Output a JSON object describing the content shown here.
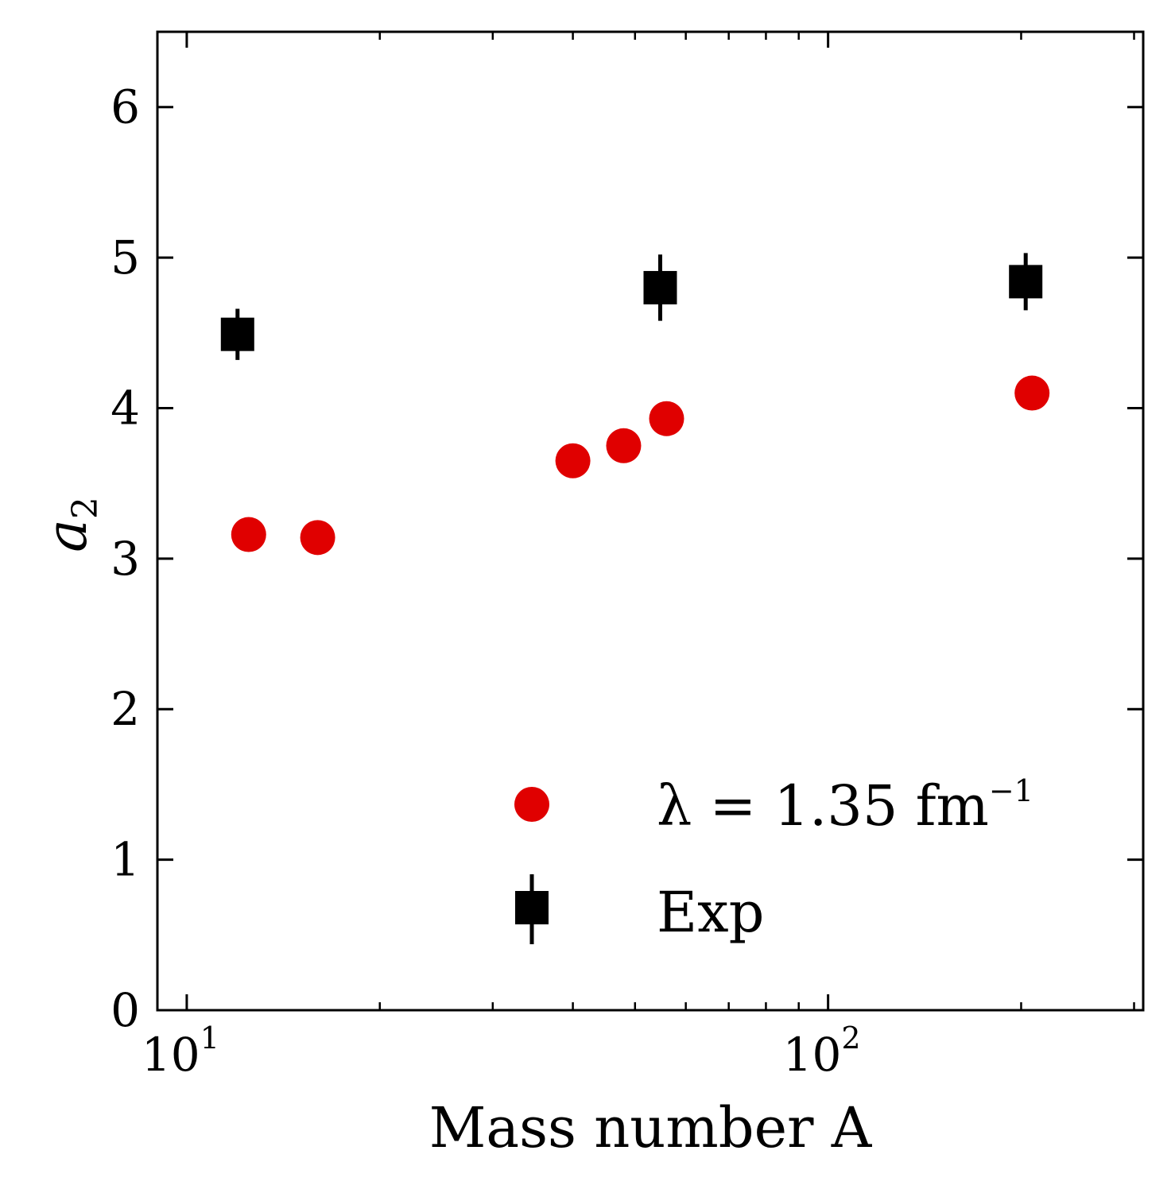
{
  "chart_data": {
    "type": "scatter",
    "xscale": "log",
    "xlim": [
      9,
      310
    ],
    "ylim": [
      0,
      6.5
    ],
    "xticks_major": [
      {
        "value": 10,
        "base": "10",
        "exp": "1"
      },
      {
        "value": 100,
        "base": "10",
        "exp": "2"
      }
    ],
    "yticks": [
      "0",
      "1",
      "2",
      "3",
      "4",
      "5",
      "6"
    ],
    "xlabel": "Mass number A",
    "ylabel": {
      "symbol": "a",
      "subscript": "2"
    },
    "grid": false,
    "legend_position": "bottom-right",
    "series": [
      {
        "key": "theory",
        "name": "λ = 1.35 fm",
        "name_sup": "−1",
        "marker": "circle",
        "color": "#e00000",
        "points": [
          {
            "x": 12,
            "y": 3.16
          },
          {
            "x": 16,
            "y": 3.14
          },
          {
            "x": 40,
            "y": 3.65
          },
          {
            "x": 48,
            "y": 3.75
          },
          {
            "x": 56,
            "y": 3.93
          },
          {
            "x": 208,
            "y": 4.1
          }
        ]
      },
      {
        "key": "exp",
        "name": "Exp",
        "marker": "square",
        "color": "#000000",
        "points": [
          {
            "x": 12,
            "y": 4.49,
            "err": 0.17
          },
          {
            "x": 56,
            "y": 4.8,
            "err": 0.22
          },
          {
            "x": 208,
            "y": 4.84,
            "err": 0.19
          }
        ]
      }
    ]
  }
}
